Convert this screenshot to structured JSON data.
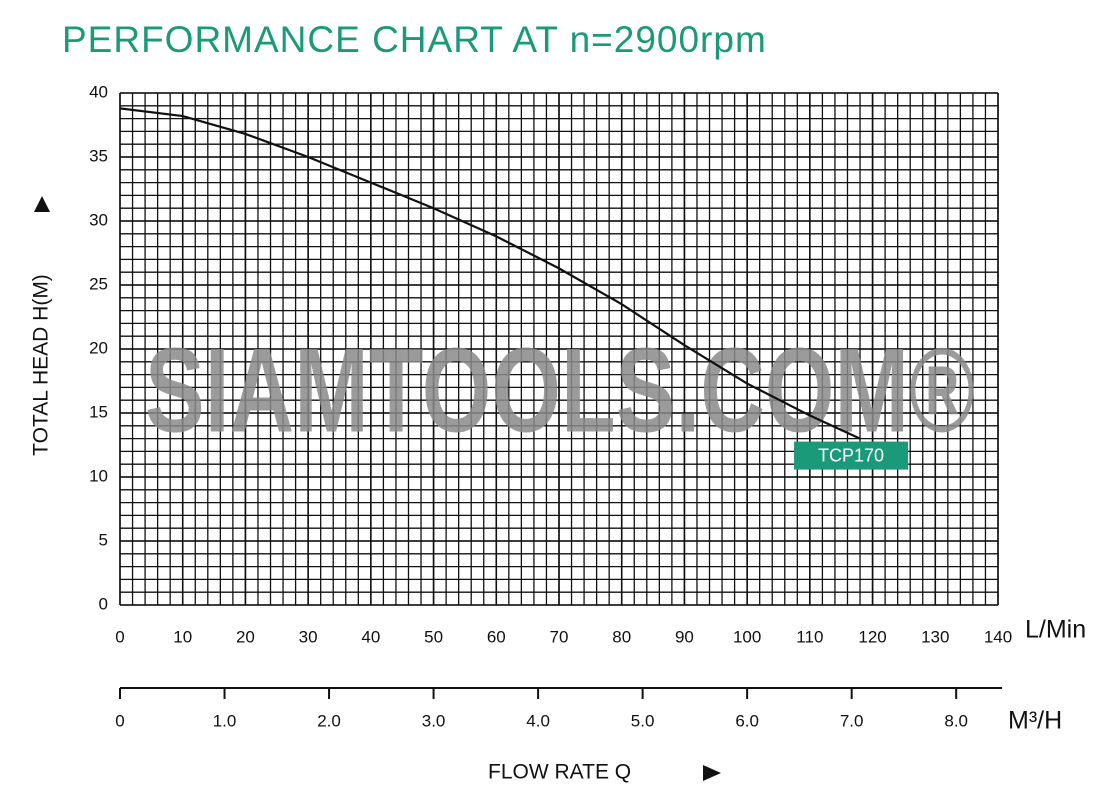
{
  "chart_data": {
    "type": "line",
    "title": "PERFORMANCE CHART AT n=2900rpm",
    "y_label": "TOTAL HEAD H(M)",
    "x_label": "FLOW RATE Q",
    "x_unit": "L/Min",
    "x2_unit": "M³/H",
    "watermark": "SIAMTOOLS.COM®",
    "x": [
      0,
      10,
      20,
      30,
      40,
      50,
      60,
      70,
      80,
      90,
      100,
      110,
      118
    ],
    "series": [
      {
        "name": "TCP170",
        "color": "#111111",
        "values": [
          38.8,
          38.2,
          36.8,
          35,
          33,
          31,
          28.8,
          26.3,
          23.5,
          20.3,
          17.3,
          14.8,
          13
        ]
      }
    ],
    "xlim": [
      0,
      140
    ],
    "xticks": [
      0,
      10,
      20,
      30,
      40,
      50,
      60,
      70,
      80,
      90,
      100,
      110,
      120,
      130,
      140
    ],
    "ylim": [
      0,
      40
    ],
    "yticks": [
      0,
      5,
      10,
      15,
      20,
      25,
      30,
      35,
      40
    ],
    "x2lim": [
      0,
      8.4
    ],
    "x2ticks": [
      0,
      {
        "value": 1,
        "label": "1.0"
      },
      {
        "value": 2,
        "label": "2.0"
      },
      {
        "value": 3,
        "label": "3.0"
      },
      {
        "value": 4,
        "label": "4.0"
      },
      {
        "value": 5,
        "label": "5.0"
      },
      {
        "value": 6,
        "label": "6.0"
      },
      {
        "value": 7,
        "label": "7.0"
      },
      {
        "value": 8,
        "label": "8.0"
      }
    ],
    "grid": true,
    "minor_grid": {
      "x": 2,
      "y": 1
    },
    "title_color": "#1a9a78",
    "label_color": "#1a9a78"
  }
}
